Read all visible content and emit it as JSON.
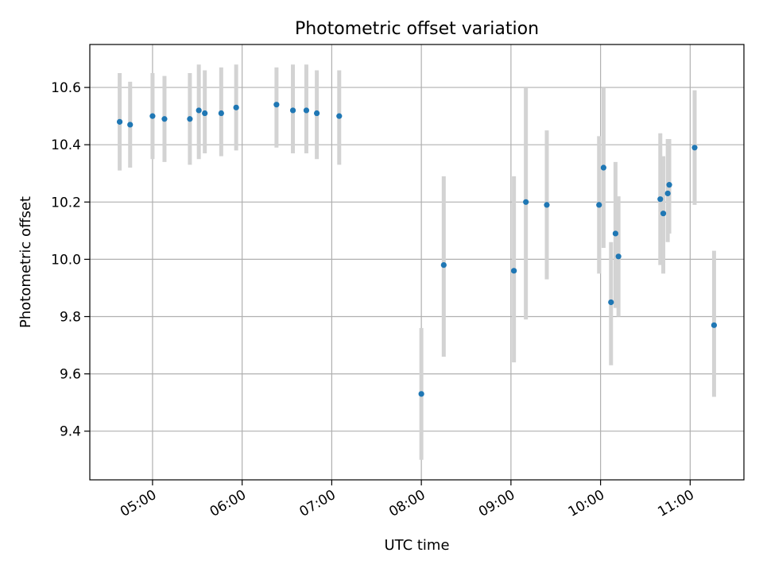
{
  "chart_data": {
    "type": "scatter",
    "title": "Photometric offset variation",
    "xlabel": "UTC time",
    "ylabel": "Photometric offset",
    "xlim_hours": [
      4.3,
      11.6
    ],
    "ylim": [
      9.23,
      10.75
    ],
    "grid": true,
    "legend": "none",
    "x_ticks": [
      {
        "hour": 5,
        "label": "05:00"
      },
      {
        "hour": 6,
        "label": "06:00"
      },
      {
        "hour": 7,
        "label": "07:00"
      },
      {
        "hour": 8,
        "label": "08:00"
      },
      {
        "hour": 9,
        "label": "09:00"
      },
      {
        "hour": 10,
        "label": "10:00"
      },
      {
        "hour": 11,
        "label": "11:00"
      }
    ],
    "y_ticks": [
      {
        "value": 9.4,
        "label": "9.4"
      },
      {
        "value": 9.6,
        "label": "9.6"
      },
      {
        "value": 9.8,
        "label": "9.8"
      },
      {
        "value": 10.0,
        "label": "10.0"
      },
      {
        "value": 10.2,
        "label": "10.2"
      },
      {
        "value": 10.4,
        "label": "10.4"
      },
      {
        "value": 10.6,
        "label": "10.6"
      }
    ],
    "point_color": "#1f77b4",
    "errorbar_color": "#d3d3d3",
    "points": [
      {
        "t": "04:38",
        "y": 10.48,
        "lo": 10.31,
        "hi": 10.65
      },
      {
        "t": "04:45",
        "y": 10.47,
        "lo": 10.32,
        "hi": 10.62
      },
      {
        "t": "05:00",
        "y": 10.5,
        "lo": 10.35,
        "hi": 10.65
      },
      {
        "t": "05:08",
        "y": 10.49,
        "lo": 10.34,
        "hi": 10.64
      },
      {
        "t": "05:25",
        "y": 10.49,
        "lo": 10.33,
        "hi": 10.65
      },
      {
        "t": "05:31",
        "y": 10.52,
        "lo": 10.35,
        "hi": 10.68
      },
      {
        "t": "05:35",
        "y": 10.51,
        "lo": 10.37,
        "hi": 10.66
      },
      {
        "t": "05:46",
        "y": 10.51,
        "lo": 10.36,
        "hi": 10.67
      },
      {
        "t": "05:56",
        "y": 10.53,
        "lo": 10.38,
        "hi": 10.68
      },
      {
        "t": "06:23",
        "y": 10.54,
        "lo": 10.39,
        "hi": 10.67
      },
      {
        "t": "06:34",
        "y": 10.52,
        "lo": 10.37,
        "hi": 10.68
      },
      {
        "t": "06:43",
        "y": 10.52,
        "lo": 10.37,
        "hi": 10.68
      },
      {
        "t": "06:50",
        "y": 10.51,
        "lo": 10.35,
        "hi": 10.66
      },
      {
        "t": "07:05",
        "y": 10.5,
        "lo": 10.33,
        "hi": 10.66
      },
      {
        "t": "08:00",
        "y": 9.53,
        "lo": 9.3,
        "hi": 9.76
      },
      {
        "t": "08:15",
        "y": 9.98,
        "lo": 9.66,
        "hi": 10.29
      },
      {
        "t": "09:02",
        "y": 9.96,
        "lo": 9.64,
        "hi": 10.29
      },
      {
        "t": "09:10",
        "y": 10.2,
        "lo": 9.79,
        "hi": 10.6
      },
      {
        "t": "09:24",
        "y": 10.19,
        "lo": 9.93,
        "hi": 10.45
      },
      {
        "t": "09:59",
        "y": 10.19,
        "lo": 9.95,
        "hi": 10.43
      },
      {
        "t": "10:02",
        "y": 10.32,
        "lo": 10.04,
        "hi": 10.6
      },
      {
        "t": "10:07",
        "y": 9.85,
        "lo": 9.63,
        "hi": 10.06
      },
      {
        "t": "10:10",
        "y": 10.09,
        "lo": 9.83,
        "hi": 10.34
      },
      {
        "t": "10:12",
        "y": 10.01,
        "lo": 9.8,
        "hi": 10.22
      },
      {
        "t": "10:40",
        "y": 10.21,
        "lo": 9.98,
        "hi": 10.44
      },
      {
        "t": "10:42",
        "y": 10.16,
        "lo": 9.95,
        "hi": 10.36
      },
      {
        "t": "10:45",
        "y": 10.23,
        "lo": 10.06,
        "hi": 10.42
      },
      {
        "t": "10:46",
        "y": 10.26,
        "lo": 10.09,
        "hi": 10.42
      },
      {
        "t": "11:03",
        "y": 10.39,
        "lo": 10.19,
        "hi": 10.59
      },
      {
        "t": "11:16",
        "y": 9.77,
        "lo": 9.52,
        "hi": 10.03
      }
    ]
  }
}
